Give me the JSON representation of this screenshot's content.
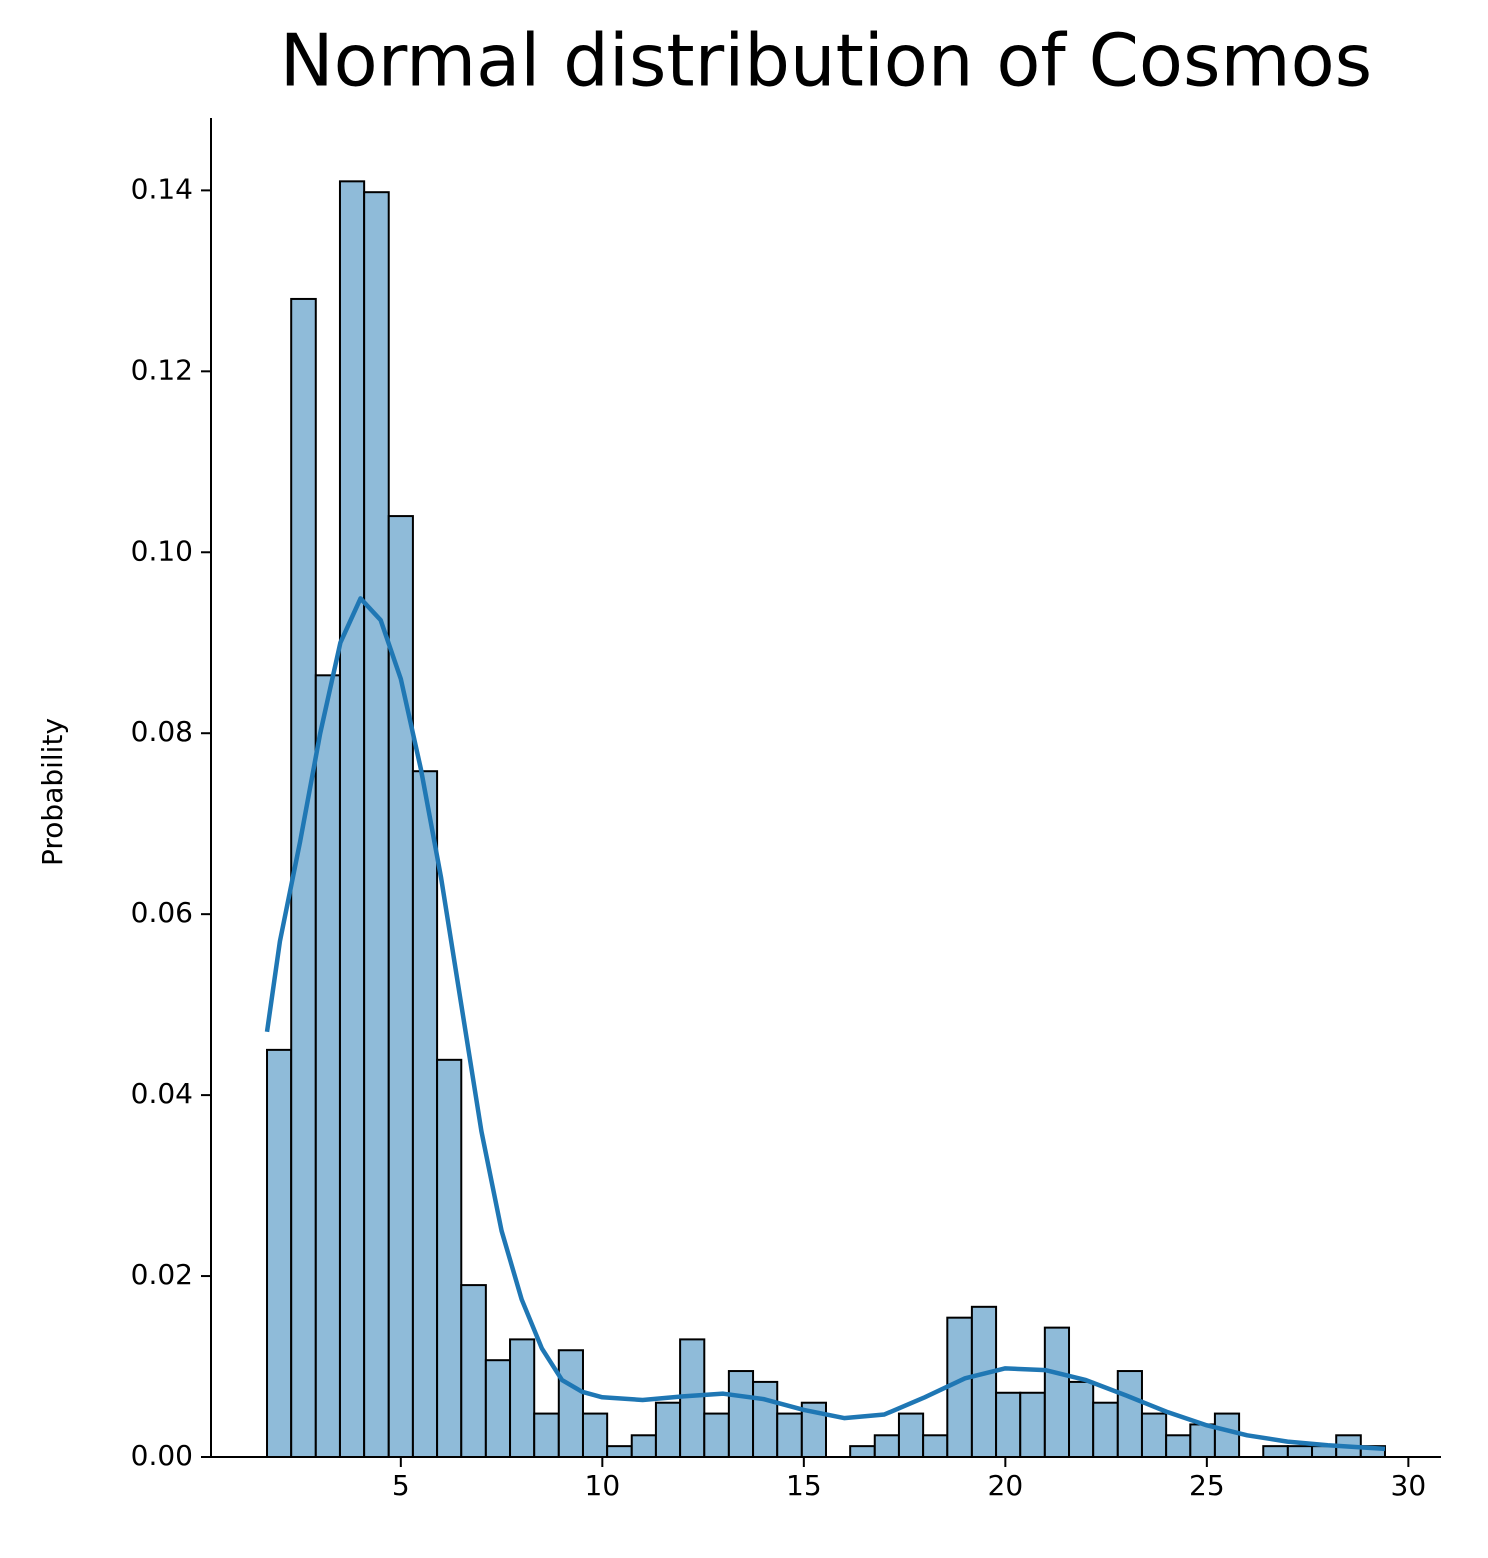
{
  "chart_data": {
    "type": "histogram",
    "title": "Normal distribution of Cosmos",
    "ylabel": "Probability",
    "bins": [
      1.68,
      2.28,
      2.89,
      3.49,
      4.09,
      4.7,
      5.3,
      5.9,
      6.5,
      7.11,
      7.71,
      8.31,
      8.92,
      9.52,
      10.12,
      10.73,
      11.33,
      11.93,
      12.53,
      13.14,
      13.74,
      14.34,
      14.95,
      15.55,
      16.15,
      16.76,
      17.36,
      17.96,
      18.56,
      19.17,
      19.77,
      20.37,
      20.98,
      21.58,
      22.18,
      22.79,
      23.39,
      23.99,
      24.59,
      25.2,
      25.8,
      26.4,
      27.01,
      27.61,
      28.21,
      28.82,
      29.42
    ],
    "values": [
      0.045,
      0.128,
      0.0864,
      0.141,
      0.1398,
      0.104,
      0.0758,
      0.0439,
      0.019,
      0.0107,
      0.013,
      0.0048,
      0.0118,
      0.0048,
      0.0012,
      0.0024,
      0.006,
      0.013,
      0.0048,
      0.0095,
      0.0083,
      0.0048,
      0.006,
      0,
      0.0012,
      0.0024,
      0.0048,
      0.0024,
      0.0154,
      0.0166,
      0.0071,
      0.0071,
      0.0143,
      0.0083,
      0.006,
      0.0095,
      0.0048,
      0.0024,
      0.0036,
      0.0048,
      0,
      0.0012,
      0.0012,
      0.0012,
      0.0024,
      0.0012
    ],
    "color": "#8fbbd9",
    "edgecolor": "#000000",
    "line": {
      "color": "#1f77b4",
      "x": [
        1.68,
        2.0,
        2.5,
        3.0,
        3.5,
        4.0,
        4.5,
        5.0,
        5.5,
        6.0,
        6.5,
        7.0,
        7.5,
        8.0,
        8.5,
        9.0,
        9.5,
        10.0,
        11.0,
        12.0,
        13.0,
        14.0,
        15.0,
        16.0,
        17.0,
        18.0,
        19.0,
        20.0,
        21.0,
        22.0,
        23.0,
        24.0,
        25.0,
        26.0,
        27.0,
        28.0,
        29.42
      ],
      "values": [
        0.047,
        0.057,
        0.068,
        0.08,
        0.09,
        0.0949,
        0.0925,
        0.086,
        0.076,
        0.064,
        0.05,
        0.036,
        0.025,
        0.0174,
        0.012,
        0.0085,
        0.0072,
        0.0066,
        0.0063,
        0.0067,
        0.007,
        0.0064,
        0.0052,
        0.0043,
        0.0047,
        0.0066,
        0.0087,
        0.0098,
        0.0096,
        0.0085,
        0.0068,
        0.005,
        0.0035,
        0.0024,
        0.0017,
        0.0013,
        0.0009
      ]
    },
    "xlim": [
      0.29,
      30.81
    ],
    "ylim": [
      0,
      0.148
    ],
    "xticks": [
      5,
      10,
      15,
      20,
      25,
      30
    ],
    "yticks": [
      {
        "value": 0,
        "label": "0.00"
      },
      {
        "value": 0.02,
        "label": "0.02"
      },
      {
        "value": 0.04,
        "label": "0.04"
      },
      {
        "value": 0.06,
        "label": "0.06"
      },
      {
        "value": 0.08,
        "label": "0.08"
      },
      {
        "value": 0.1,
        "label": "0.10"
      },
      {
        "value": 0.12,
        "label": "0.12"
      },
      {
        "value": 0.14,
        "label": "0.14"
      }
    ],
    "grid": false
  }
}
